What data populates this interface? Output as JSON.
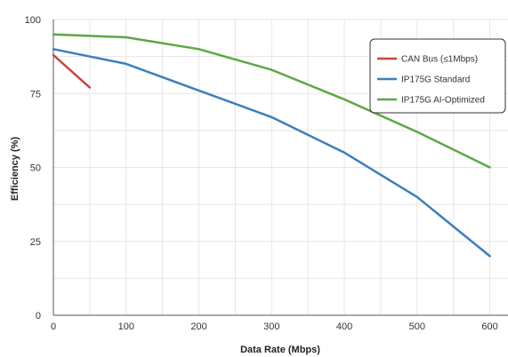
{
  "chart_data": {
    "type": "line",
    "title": "",
    "xlabel": "Data Rate (Mbps)",
    "ylabel": "Efficiency (%)",
    "xlim": [
      0,
      625
    ],
    "ylim": [
      0,
      100
    ],
    "x_ticks": [
      0,
      100,
      200,
      300,
      400,
      500,
      600
    ],
    "y_ticks": [
      0,
      25,
      50,
      75,
      100
    ],
    "x_gridlines": [
      0,
      50,
      100,
      150,
      200,
      250,
      300,
      350,
      400,
      450,
      500,
      550,
      600
    ],
    "y_gridlines": [
      0,
      12.5,
      25,
      37.5,
      50,
      62.5,
      75,
      87.5,
      100
    ],
    "grid": true,
    "legend_position": "top-right",
    "series": [
      {
        "name": "CAN Bus (≤1Mbps)",
        "color": "#c9453d",
        "points": [
          [
            0,
            88
          ],
          [
            50,
            77
          ]
        ]
      },
      {
        "name": "IP175G Standard",
        "color": "#3b7fbe",
        "points": [
          [
            0,
            90
          ],
          [
            100,
            85
          ],
          [
            200,
            76
          ],
          [
            300,
            67
          ],
          [
            400,
            55
          ],
          [
            500,
            40
          ],
          [
            600,
            20
          ]
        ]
      },
      {
        "name": "IP175G AI-Optimized",
        "color": "#5aa845",
        "points": [
          [
            0,
            95
          ],
          [
            100,
            94
          ],
          [
            200,
            90
          ],
          [
            300,
            83
          ],
          [
            400,
            73
          ],
          [
            500,
            62
          ],
          [
            600,
            50
          ]
        ]
      }
    ]
  }
}
